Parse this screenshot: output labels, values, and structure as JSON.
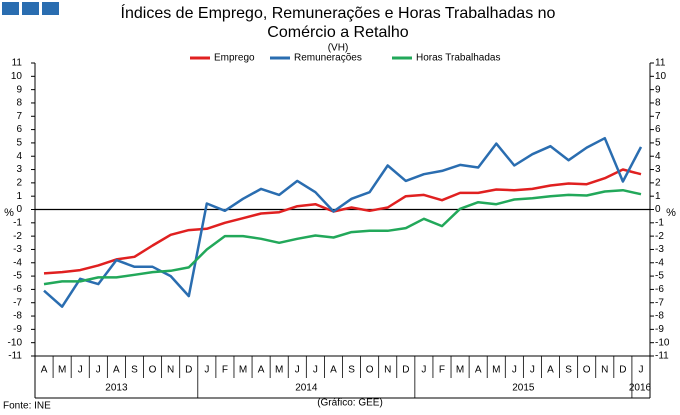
{
  "chart_data": {
    "type": "line",
    "title": [
      "Índices de Emprego, Remunerações e Horas Trabalhadas no",
      "Comércio a Retalho"
    ],
    "subtitle": "(VH)",
    "unit": "%",
    "source": "Fonte: INE",
    "credit": "(Gráfico: GEE)",
    "category_groups": [
      {
        "label": "2013",
        "categories": [
          "A",
          "M",
          "J",
          "J",
          "A",
          "S",
          "O",
          "N",
          "D"
        ]
      },
      {
        "label": "2014",
        "categories": [
          "J",
          "F",
          "M",
          "A",
          "M",
          "J",
          "J",
          "A",
          "S",
          "O",
          "N",
          "D"
        ]
      },
      {
        "label": "2015",
        "categories": [
          "J",
          "F",
          "M",
          "A",
          "M",
          "J",
          "J",
          "A",
          "S",
          "O",
          "N",
          "D"
        ]
      },
      {
        "label": "2016",
        "categories": [
          "J"
        ]
      }
    ],
    "ylim": [
      -11,
      11
    ],
    "yticks": [
      -11,
      -10,
      -9,
      -8,
      -7,
      -6,
      -5,
      -4,
      -3,
      -2,
      -1,
      0,
      1,
      2,
      3,
      4,
      5,
      6,
      7,
      8,
      9,
      10,
      11
    ],
    "series": [
      {
        "name": "Emprego",
        "color": "#e02020",
        "values": [
          -4.8,
          -4.7,
          -4.55,
          -4.2,
          -3.75,
          -3.55,
          -2.7,
          -1.9,
          -1.55,
          -1.45,
          -1.0,
          -0.65,
          -0.3,
          -0.2,
          0.25,
          0.4,
          -0.15,
          0.15,
          -0.1,
          0.15,
          1.0,
          1.1,
          0.7,
          1.25,
          1.25,
          1.5,
          1.45,
          1.55,
          1.8,
          1.95,
          1.9,
          2.35,
          3.0,
          2.65
        ]
      },
      {
        "name": "Remunerações",
        "color": "#2a6db0",
        "values": [
          -6.1,
          -7.3,
          -5.2,
          -5.6,
          -3.8,
          -4.3,
          -4.3,
          -5.0,
          -6.5,
          0.45,
          -0.1,
          0.8,
          1.55,
          1.1,
          2.15,
          1.3,
          -0.15,
          0.8,
          1.3,
          3.3,
          2.15,
          2.65,
          2.9,
          3.35,
          3.15,
          4.95,
          3.3,
          4.15,
          4.75,
          3.7,
          4.65,
          5.35,
          2.1,
          4.7
        ]
      },
      {
        "name": "Horas Trabalhadas",
        "color": "#22a85a",
        "values": [
          -5.6,
          -5.4,
          -5.4,
          -5.1,
          -5.1,
          -4.9,
          -4.7,
          -4.6,
          -4.35,
          -3.0,
          -2.0,
          -2.0,
          -2.2,
          -2.5,
          -2.2,
          -1.95,
          -2.1,
          -1.7,
          -1.6,
          -1.6,
          -1.4,
          -0.7,
          -1.25,
          0.05,
          0.55,
          0.4,
          0.75,
          0.85,
          1.0,
          1.1,
          1.05,
          1.35,
          1.45,
          1.15
        ]
      }
    ]
  }
}
